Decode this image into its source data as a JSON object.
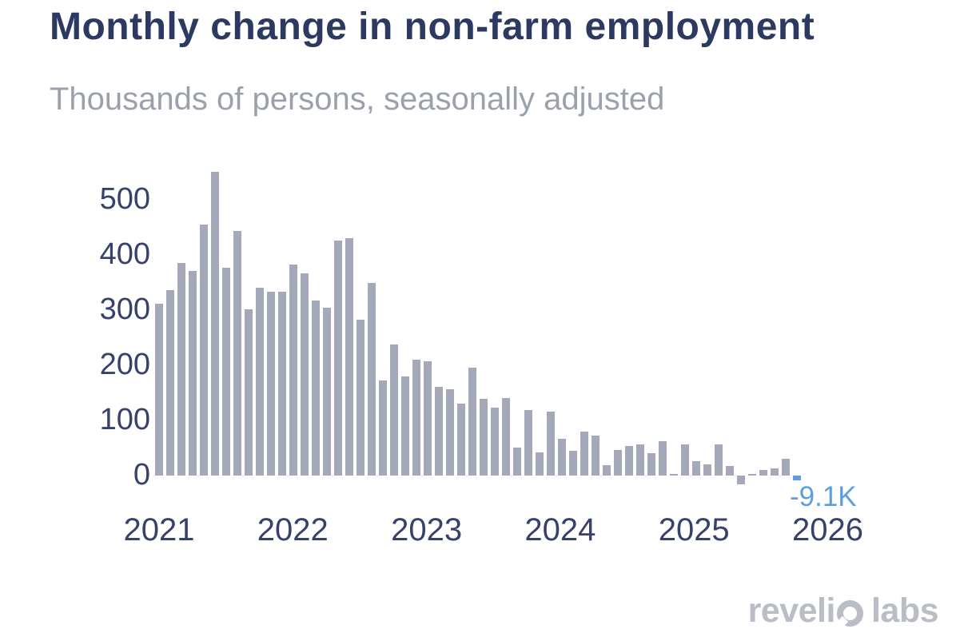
{
  "chart_data": {
    "type": "bar",
    "title": "Monthly change in non-farm employment",
    "subtitle": "Thousands of persons, seasonally adjusted",
    "unit": "thousands of persons",
    "frequency": "monthly",
    "x_start": "2021-01",
    "values": [
      311,
      336,
      386,
      371,
      455,
      551,
      377,
      444,
      302,
      341,
      334,
      333,
      382,
      366,
      318,
      304,
      426,
      430,
      283,
      350,
      172,
      237,
      179,
      210,
      207,
      161,
      156,
      130,
      195,
      139,
      123,
      140,
      50,
      119,
      42,
      116,
      67,
      45,
      79,
      73,
      19,
      47,
      53,
      56,
      40,
      63,
      3,
      57,
      26,
      20,
      57,
      18,
      -16,
      3,
      10,
      13,
      30,
      -9.1
    ],
    "x_tick_labels": [
      "2021",
      "2022",
      "2023",
      "2024",
      "2025",
      "2026"
    ],
    "y_ticks": [
      0,
      100,
      200,
      300,
      400,
      500
    ],
    "ylim": [
      -30,
      570
    ],
    "grid": false,
    "legend_position": "none",
    "bar_color": "#a4a9ba",
    "highlight_color": "#5d9fdd",
    "highlight_index": 57,
    "annotation": {
      "text": "-9.1K",
      "color": "#5d9fdd"
    }
  },
  "colors": {
    "title": "#2c3960",
    "subtitle": "#9ba1ac",
    "axis_label": "#36426a",
    "logo": "#b9bdc5"
  },
  "logo": {
    "name": "revelio labs",
    "text_before_mark": "reveli",
    "text_after_mark": "labs"
  }
}
